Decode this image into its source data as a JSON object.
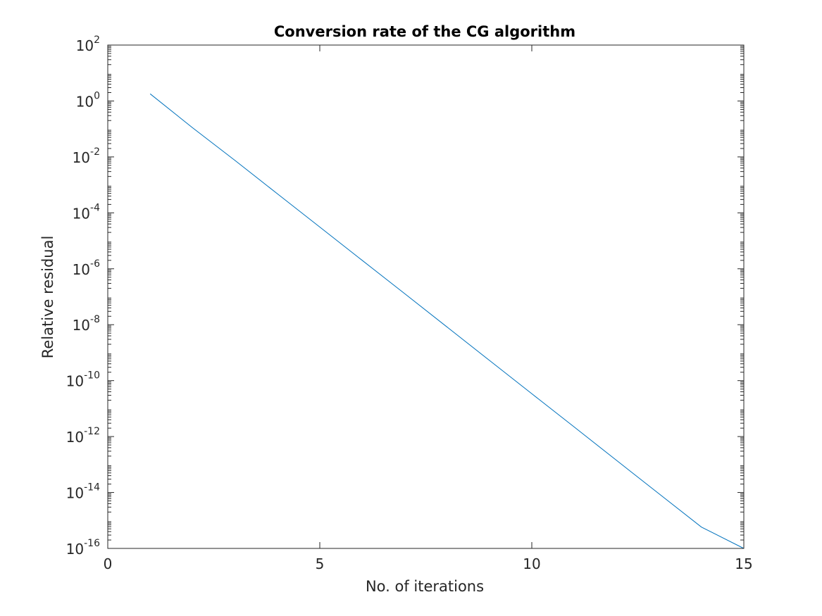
{
  "chart_data": {
    "type": "line",
    "title": "Conversion rate of the CG algorithm",
    "xlabel": "No. of iterations",
    "ylabel": "Relative residual",
    "xlim": [
      0,
      15
    ],
    "ylim": [
      1e-16,
      100
    ],
    "yscale": "log",
    "grid": false,
    "box": true,
    "x_ticks": [
      0,
      5,
      10,
      15
    ],
    "x_tick_labels": [
      "0",
      "5",
      "10",
      "15"
    ],
    "y_ticks_exponent": [
      -16,
      -14,
      -12,
      -10,
      -8,
      -6,
      -4,
      -2,
      0,
      2
    ],
    "y_tick_base": "10",
    "y_tick_exponent_labels": [
      "-16",
      "-14",
      "-12",
      "-10",
      "-8",
      "-6",
      "-4",
      "-2",
      "0",
      "2"
    ],
    "series": [
      {
        "color": "#0072bd",
        "x": [
          1,
          2,
          3,
          4,
          5,
          6,
          7,
          8,
          9,
          10,
          11,
          12,
          13,
          14,
          15
        ],
        "y": [
          1.8,
          0.11,
          0.0075,
          0.00048,
          3.1e-05,
          2e-06,
          1.3e-07,
          8.3e-09,
          5.3e-10,
          3.4e-11,
          2.2e-12,
          1.4e-13,
          9e-15,
          5.8e-16,
          3.7e-17
        ]
      }
    ]
  }
}
